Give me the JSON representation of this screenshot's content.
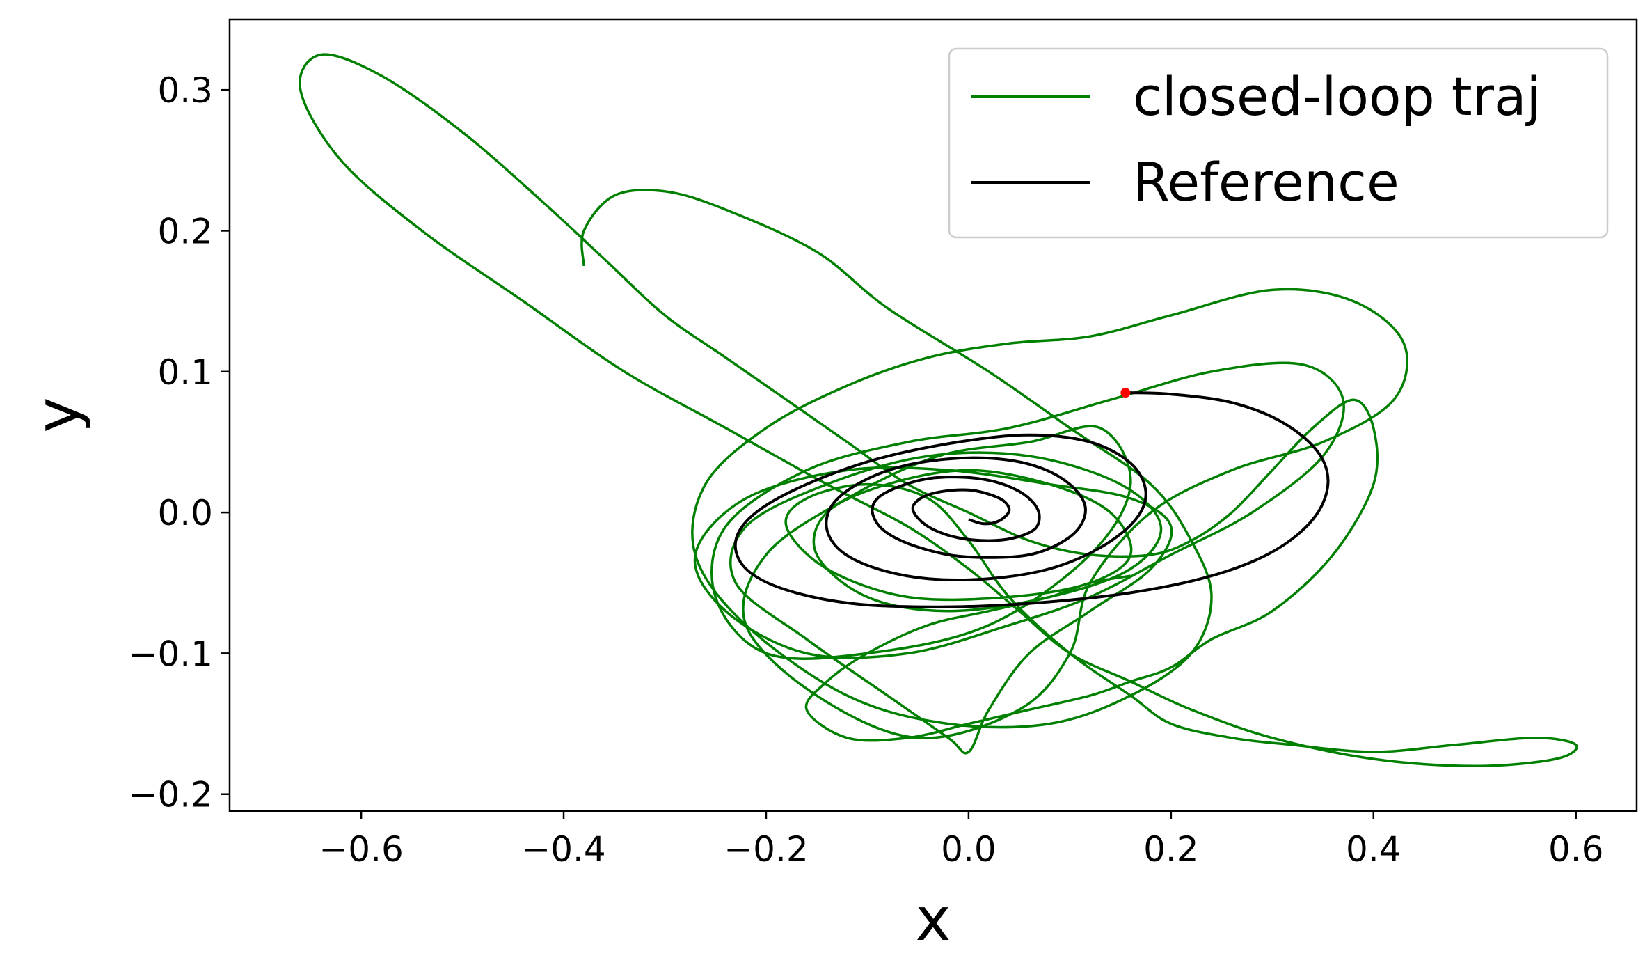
{
  "chart_data": {
    "type": "line",
    "title": "",
    "xlabel": "x",
    "ylabel": "y",
    "xlim": [
      -0.73,
      0.66
    ],
    "ylim": [
      -0.212,
      0.35
    ],
    "xticks": [
      -0.6,
      -0.4,
      -0.2,
      0.0,
      0.2,
      0.4,
      0.6
    ],
    "yticks": [
      -0.2,
      -0.1,
      0.0,
      0.1,
      0.2,
      0.3
    ],
    "xtick_labels": [
      "−0.6",
      "−0.4",
      "−0.2",
      "0.0",
      "0.2",
      "0.4",
      "0.6"
    ],
    "ytick_labels": [
      "−0.2",
      "−0.1",
      "0.0",
      "0.1",
      "0.2",
      "0.3"
    ],
    "grid": false,
    "legend_position": "upper right",
    "series": [
      {
        "name": "closed-loop traj",
        "color": "#008000",
        "x": [
          -0.38,
          -0.38,
          -0.35,
          -0.3,
          -0.24,
          -0.15,
          -0.08,
          0.02,
          0.1,
          0.18,
          0.22,
          0.24,
          0.22,
          0.16,
          0.08,
          -0.02,
          -0.12,
          -0.22,
          -0.27,
          -0.26,
          -0.2,
          -0.12,
          -0.04,
          0.04,
          0.12,
          0.2,
          0.3,
          0.38,
          0.43,
          0.42,
          0.35,
          0.26,
          0.18,
          0.12,
          0.1,
          0.05,
          -0.05,
          -0.15,
          -0.22,
          -0.2,
          -0.12,
          -0.03,
          0.06,
          0.13,
          0.16,
          0.12,
          0.02,
          -0.1,
          -0.2,
          -0.25,
          -0.24,
          -0.16,
          -0.06,
          0.04,
          0.14,
          0.24,
          0.33,
          0.37,
          0.35,
          0.28,
          0.2,
          0.12,
          0.04,
          -0.06,
          -0.16,
          -0.24,
          -0.27,
          -0.22,
          -0.12,
          -0.02,
          0.08,
          0.16,
          0.2,
          0.18,
          0.12,
          0.06,
          0.02,
          0.0,
          -0.02,
          -0.08,
          -0.16,
          -0.23,
          -0.22,
          -0.14,
          -0.04,
          0.06,
          0.15,
          0.19,
          0.16,
          0.08,
          -0.02,
          -0.1,
          -0.15,
          -0.14,
          -0.08,
          0.0,
          0.08,
          0.14,
          0.16,
          0.12,
          0.04,
          -0.06,
          -0.14,
          -0.18,
          -0.16,
          -0.1,
          -0.04,
          0.0,
          0.04,
          0.1,
          0.16,
          0.2,
          0.26,
          0.32,
          0.4,
          0.48,
          0.56,
          0.6,
          0.58,
          0.5,
          0.4,
          0.3,
          0.22,
          0.16,
          0.1,
          0.05,
          0.0,
          -0.06,
          -0.14,
          -0.24,
          -0.34,
          -0.44,
          -0.54,
          -0.62,
          -0.66,
          -0.64,
          -0.58,
          -0.5,
          -0.42,
          -0.36,
          -0.3,
          -0.24,
          -0.18,
          -0.12,
          -0.06,
          0.0,
          0.06,
          0.12,
          0.18,
          0.22,
          0.26,
          0.3,
          0.34,
          0.38,
          0.4,
          0.4,
          0.36,
          0.3,
          0.24,
          0.2,
          0.16,
          0.12,
          0.06,
          0.0,
          -0.06,
          -0.12,
          -0.16,
          -0.14,
          -0.1,
          -0.04,
          0.02,
          0.08,
          0.12,
          0.16
        ],
        "y": [
          0.175,
          0.2,
          0.225,
          0.228,
          0.215,
          0.185,
          0.145,
          0.1,
          0.06,
          0.02,
          -0.02,
          -0.06,
          -0.1,
          -0.13,
          -0.15,
          -0.15,
          -0.13,
          -0.08,
          -0.03,
          0.02,
          0.06,
          0.09,
          0.11,
          0.12,
          0.125,
          0.14,
          0.158,
          0.15,
          0.12,
          0.08,
          0.05,
          0.03,
          0.0,
          -0.05,
          -0.1,
          -0.14,
          -0.16,
          -0.13,
          -0.08,
          -0.03,
          0.01,
          0.04,
          0.05,
          0.06,
          0.02,
          -0.03,
          -0.08,
          -0.1,
          -0.1,
          -0.06,
          -0.01,
          0.03,
          0.05,
          0.06,
          0.08,
          0.1,
          0.105,
          0.08,
          0.04,
          0.0,
          -0.03,
          -0.06,
          -0.08,
          -0.1,
          -0.1,
          -0.07,
          -0.03,
          0.01,
          0.03,
          0.03,
          0.02,
          0.01,
          -0.01,
          -0.04,
          -0.07,
          -0.1,
          -0.14,
          -0.17,
          -0.16,
          -0.13,
          -0.09,
          -0.05,
          -0.01,
          0.02,
          0.04,
          0.04,
          0.02,
          -0.01,
          -0.04,
          -0.06,
          -0.07,
          -0.06,
          -0.03,
          0.0,
          0.02,
          0.03,
          0.02,
          0.0,
          -0.03,
          -0.05,
          -0.06,
          -0.06,
          -0.04,
          -0.01,
          0.01,
          0.02,
          0.01,
          -0.02,
          -0.06,
          -0.1,
          -0.13,
          -0.15,
          -0.16,
          -0.165,
          -0.17,
          -0.165,
          -0.16,
          -0.165,
          -0.175,
          -0.18,
          -0.175,
          -0.16,
          -0.14,
          -0.12,
          -0.1,
          -0.07,
          -0.04,
          -0.01,
          0.02,
          0.06,
          0.1,
          0.15,
          0.2,
          0.25,
          0.3,
          0.325,
          0.31,
          0.27,
          0.22,
          0.18,
          0.14,
          0.11,
          0.08,
          0.05,
          0.02,
          0.0,
          -0.02,
          -0.03,
          -0.03,
          -0.02,
          0.0,
          0.03,
          0.06,
          0.08,
          0.06,
          0.02,
          -0.03,
          -0.07,
          -0.09,
          -0.11,
          -0.12,
          -0.13,
          -0.14,
          -0.15,
          -0.16,
          -0.16,
          -0.14,
          -0.12,
          -0.1,
          -0.08,
          -0.07,
          -0.06,
          -0.05,
          -0.045
        ]
      },
      {
        "name": "Reference",
        "color": "#000000",
        "x": [
          0.155,
          0.16,
          0.2,
          0.26,
          0.31,
          0.345,
          0.355,
          0.34,
          0.3,
          0.24,
          0.16,
          0.07,
          -0.02,
          -0.11,
          -0.18,
          -0.22,
          -0.23,
          -0.21,
          -0.16,
          -0.09,
          -0.01,
          0.06,
          0.12,
          0.16,
          0.175,
          0.165,
          0.13,
          0.08,
          0.02,
          -0.04,
          -0.09,
          -0.125,
          -0.14,
          -0.135,
          -0.11,
          -0.07,
          -0.02,
          0.03,
          0.07,
          0.1,
          0.115,
          0.11,
          0.09,
          0.06,
          0.02,
          -0.02,
          -0.06,
          -0.085,
          -0.095,
          -0.09,
          -0.07,
          -0.04,
          -0.005,
          0.025,
          0.05,
          0.065,
          0.07,
          0.065,
          0.045,
          0.02,
          -0.01,
          -0.035,
          -0.05,
          -0.055,
          -0.045,
          -0.025,
          0.0,
          0.02,
          0.035,
          0.04,
          0.03,
          0.015,
          0.0
        ],
        "y": [
          0.085,
          0.085,
          0.084,
          0.078,
          0.064,
          0.043,
          0.02,
          -0.005,
          -0.028,
          -0.045,
          -0.057,
          -0.064,
          -0.067,
          -0.065,
          -0.055,
          -0.04,
          -0.02,
          0.0,
          0.02,
          0.038,
          0.05,
          0.055,
          0.05,
          0.035,
          0.015,
          -0.005,
          -0.025,
          -0.04,
          -0.047,
          -0.047,
          -0.04,
          -0.028,
          -0.012,
          0.005,
          0.02,
          0.032,
          0.038,
          0.038,
          0.032,
          0.02,
          0.005,
          -0.01,
          -0.022,
          -0.03,
          -0.032,
          -0.03,
          -0.022,
          -0.012,
          0.0,
          0.01,
          0.018,
          0.024,
          0.025,
          0.022,
          0.015,
          0.006,
          -0.003,
          -0.012,
          -0.018,
          -0.02,
          -0.018,
          -0.012,
          -0.004,
          0.004,
          0.011,
          0.015,
          0.016,
          0.013,
          0.008,
          0.001,
          -0.006,
          -0.008,
          -0.005
        ]
      }
    ],
    "markers": [
      {
        "name": "start point",
        "x": 0.155,
        "y": 0.085,
        "color": "#ff0000"
      }
    ]
  }
}
